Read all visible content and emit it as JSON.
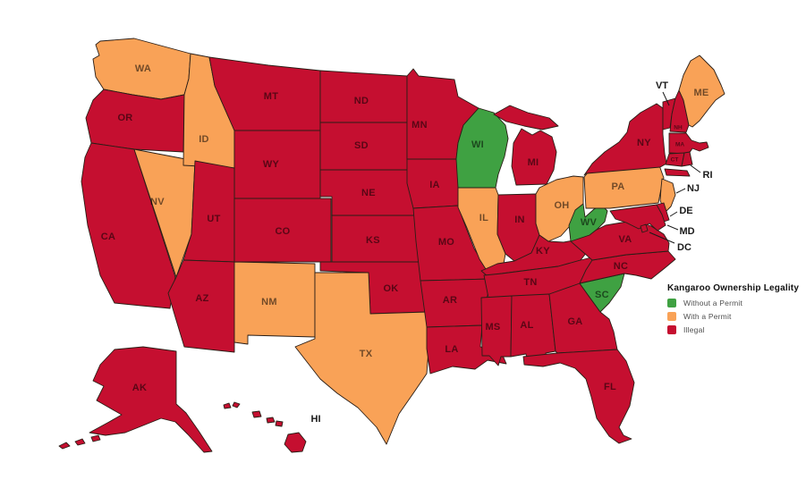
{
  "legend": {
    "title": "Kangaroo Ownership Legality",
    "items": [
      {
        "id": "without_permit",
        "label": "Without a Permit",
        "color": "#3fa142"
      },
      {
        "id": "with_permit",
        "label": "With a Permit",
        "color": "#f9a257"
      },
      {
        "id": "illegal",
        "label": "Illegal",
        "color": "#c50f30"
      }
    ]
  },
  "map": {
    "outline_color": "#2a1e16",
    "state_label_color": "rgba(0,0,0,0.55)",
    "callout_color": "#1a1a1a",
    "background": "#ffffff",
    "states": [
      {
        "abbr": "WA",
        "category": "with_permit"
      },
      {
        "abbr": "OR",
        "category": "illegal"
      },
      {
        "abbr": "CA",
        "category": "illegal"
      },
      {
        "abbr": "NV",
        "category": "with_permit"
      },
      {
        "abbr": "ID",
        "category": "with_permit"
      },
      {
        "abbr": "MT",
        "category": "illegal"
      },
      {
        "abbr": "WY",
        "category": "illegal"
      },
      {
        "abbr": "UT",
        "category": "illegal"
      },
      {
        "abbr": "AZ",
        "category": "illegal"
      },
      {
        "abbr": "CO",
        "category": "illegal"
      },
      {
        "abbr": "NM",
        "category": "with_permit"
      },
      {
        "abbr": "ND",
        "category": "illegal"
      },
      {
        "abbr": "SD",
        "category": "illegal"
      },
      {
        "abbr": "NE",
        "category": "illegal"
      },
      {
        "abbr": "KS",
        "category": "illegal"
      },
      {
        "abbr": "OK",
        "category": "illegal"
      },
      {
        "abbr": "TX",
        "category": "with_permit"
      },
      {
        "abbr": "MN",
        "category": "illegal"
      },
      {
        "abbr": "IA",
        "category": "illegal"
      },
      {
        "abbr": "MO",
        "category": "illegal"
      },
      {
        "abbr": "AR",
        "category": "illegal"
      },
      {
        "abbr": "LA",
        "category": "illegal"
      },
      {
        "abbr": "WI",
        "category": "without_permit"
      },
      {
        "abbr": "IL",
        "category": "with_permit"
      },
      {
        "abbr": "MI",
        "category": "illegal"
      },
      {
        "abbr": "IN",
        "category": "illegal"
      },
      {
        "abbr": "OH",
        "category": "with_permit"
      },
      {
        "abbr": "KY",
        "category": "illegal"
      },
      {
        "abbr": "TN",
        "category": "illegal"
      },
      {
        "abbr": "MS",
        "category": "illegal"
      },
      {
        "abbr": "AL",
        "category": "illegal"
      },
      {
        "abbr": "GA",
        "category": "illegal"
      },
      {
        "abbr": "FL",
        "category": "illegal"
      },
      {
        "abbr": "SC",
        "category": "without_permit"
      },
      {
        "abbr": "NC",
        "category": "illegal"
      },
      {
        "abbr": "VA",
        "category": "illegal"
      },
      {
        "abbr": "WV",
        "category": "without_permit"
      },
      {
        "abbr": "PA",
        "category": "with_permit"
      },
      {
        "abbr": "NY",
        "category": "illegal"
      },
      {
        "abbr": "VT",
        "category": "illegal"
      },
      {
        "abbr": "NH",
        "category": "illegal"
      },
      {
        "abbr": "ME",
        "category": "with_permit"
      },
      {
        "abbr": "MA",
        "category": "illegal"
      },
      {
        "abbr": "CT",
        "category": "illegal"
      },
      {
        "abbr": "RI",
        "category": "illegal"
      },
      {
        "abbr": "NJ",
        "category": "with_permit"
      },
      {
        "abbr": "DE",
        "category": "illegal"
      },
      {
        "abbr": "MD",
        "category": "illegal"
      },
      {
        "abbr": "DC",
        "category": "illegal"
      },
      {
        "abbr": "AK",
        "category": "illegal"
      },
      {
        "abbr": "HI",
        "category": "illegal"
      }
    ]
  }
}
